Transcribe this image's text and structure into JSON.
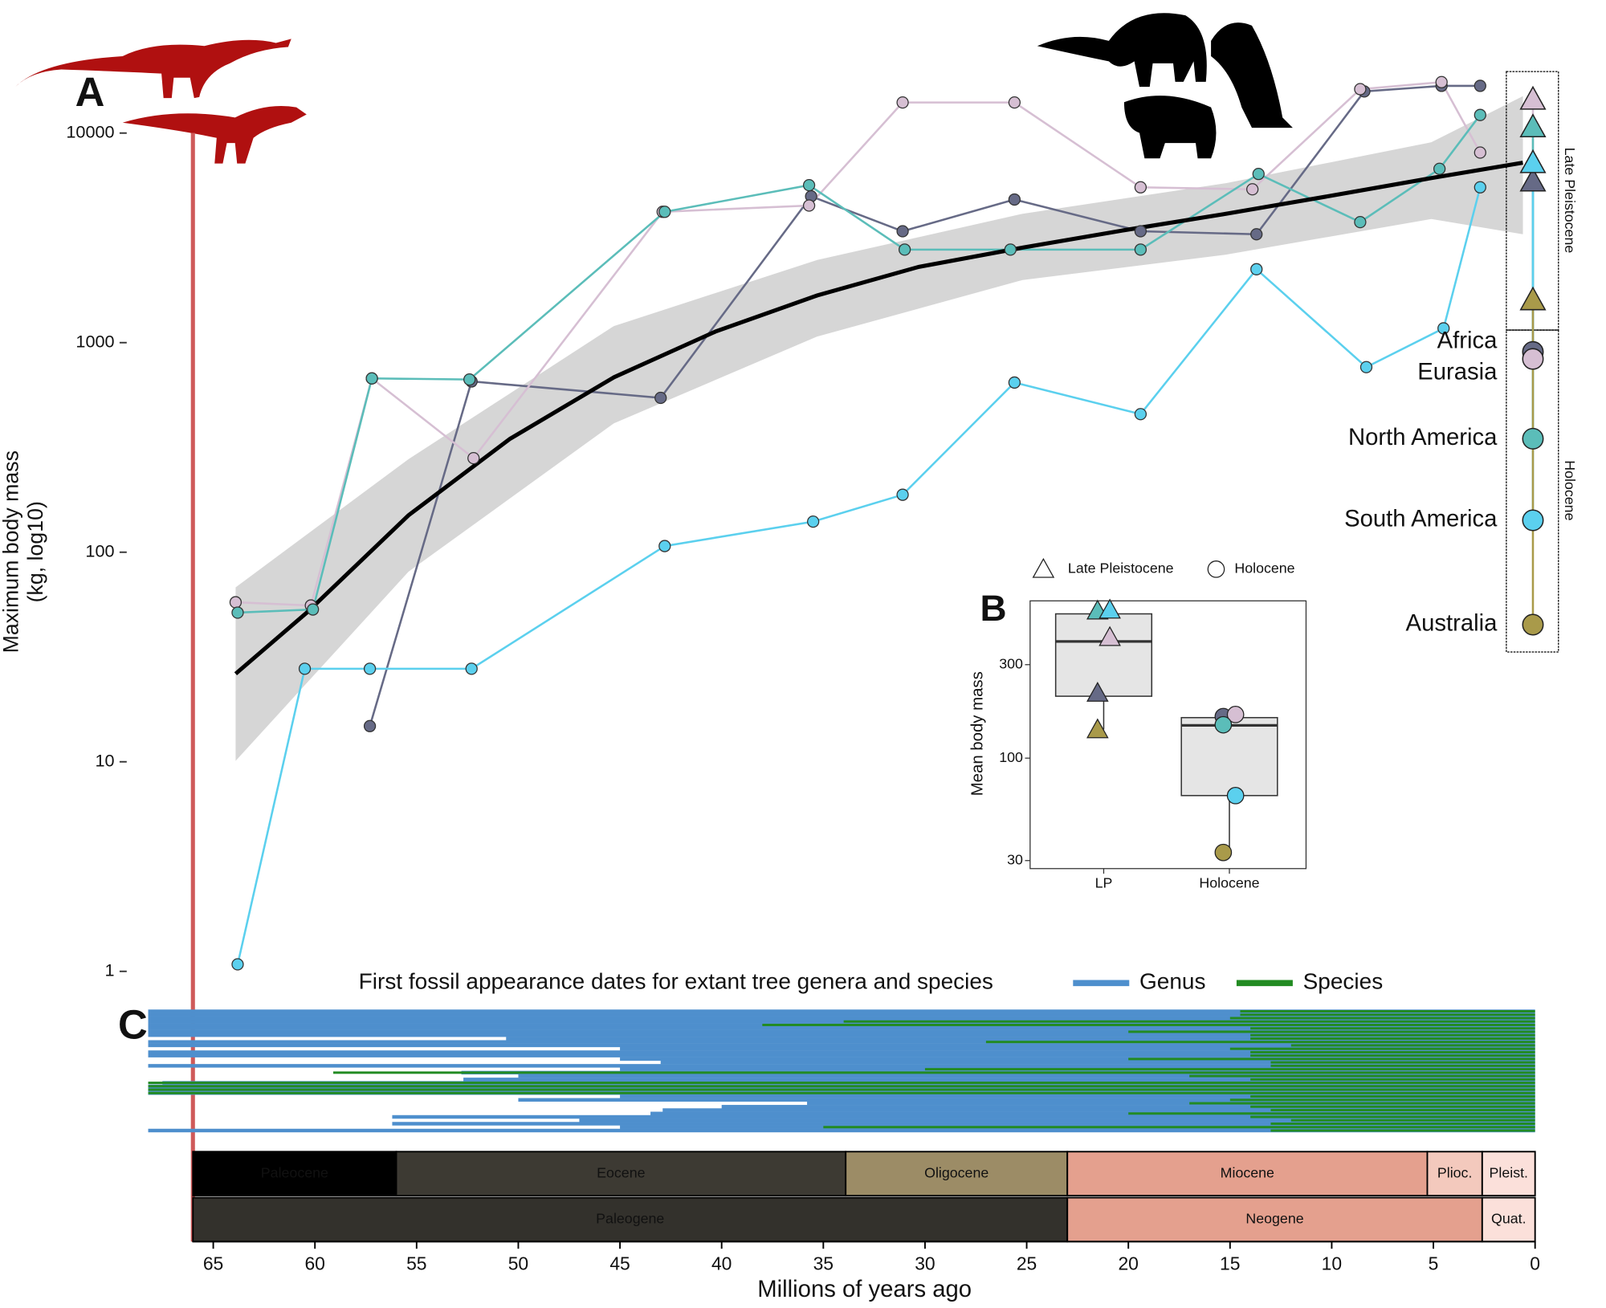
{
  "chart_data": [
    {
      "type": "line",
      "title": "A",
      "ylabel": [
        "Maximum body mass",
        "(kg, log10)"
      ],
      "xlim": [
        68.2,
        -1.2
      ],
      "ylim": [
        0.76,
        22000
      ],
      "log_y": true,
      "yticks": [
        1,
        10,
        100,
        1000,
        10000
      ],
      "reference_line": 66,
      "period_labels": [
        "Late Pleistocene",
        "Holocene"
      ],
      "trend": {
        "color": "#000000",
        "x": [
          63.9,
          60.4,
          55.4,
          50.4,
          45.3,
          40.3,
          35.3,
          30.3,
          25.2,
          20.2,
          15.2,
          10.2,
          5.1,
          0.6
        ],
        "values": [
          26.3,
          51.5,
          150,
          348,
          683,
          1130,
          1680,
          2300,
          2840,
          3440,
          4120,
          4990,
          6100,
          7220
        ]
      },
      "band": {
        "color": "#d6d6d6",
        "x": [
          63.9,
          55.4,
          45.3,
          35.3,
          25.2,
          15.2,
          5.1,
          0.6
        ],
        "upper": [
          68,
          278,
          1200,
          2480,
          4120,
          5770,
          9040,
          15000
        ],
        "lower": [
          10.1,
          80.7,
          412,
          1070,
          1990,
          2630,
          3890,
          3290
        ]
      },
      "series": [
        {
          "name": "Africa",
          "color": "#666a86",
          "x": [
            57.3,
            52.3,
            43.0,
            35.6,
            31.1,
            25.6,
            19.4,
            13.7,
            8.4,
            4.6,
            2.7
          ],
          "values": [
            14.8,
            653,
            545,
            4990,
            3400,
            4820,
            3400,
            3290,
            15800,
            16800,
            16800
          ],
          "late_pleistocene": 5900,
          "holocene": 903
        },
        {
          "name": "Eurasia",
          "color": "#d6bfd3",
          "x": [
            63.9,
            60.2,
            57.2,
            52.2,
            42.9,
            35.7,
            31.1,
            25.6,
            19.4,
            13.9,
            8.6,
            4.6,
            2.7
          ],
          "values": [
            57.7,
            55.7,
            675,
            281,
            4210,
            4510,
            14000,
            14000,
            5510,
            5390,
            16200,
            17500,
            8070
          ],
          "late_pleistocene": 14500,
          "holocene": 836
        },
        {
          "name": "North America",
          "color": "#5bbdb9",
          "x": [
            63.8,
            60.1,
            57.2,
            52.4,
            42.8,
            35.7,
            31.0,
            25.8,
            19.4,
            13.6,
            8.6,
            4.7,
            2.7
          ],
          "values": [
            51.5,
            53.3,
            675,
            667,
            4210,
            5640,
            2780,
            2780,
            2780,
            6380,
            3760,
            6750,
            12200
          ],
          "late_pleistocene": 10700,
          "holocene": 348
        },
        {
          "name": "South America",
          "color": "#5bd0ee",
          "x": [
            63.8,
            60.5,
            57.3,
            52.3,
            42.8,
            35.5,
            31.1,
            25.6,
            19.4,
            13.7,
            8.3,
            4.5,
            2.7
          ],
          "values": [
            1.08,
            27.8,
            27.8,
            27.8,
            107,
            140,
            188,
            645,
            456,
            2240,
            764,
            1170,
            5510
          ],
          "late_pleistocene": 7220,
          "holocene": 142
        },
        {
          "name": "Australia",
          "color": "#a99a4a",
          "x": [],
          "values": [],
          "late_pleistocene": 1600,
          "holocene": 45.1
        }
      ]
    },
    {
      "type": "box",
      "title": "B",
      "ylabel": "Mean body mass",
      "categories": [
        "LP",
        "Holocene"
      ],
      "ylim": [
        27.3,
        635
      ],
      "log_y": true,
      "yticks": [
        30,
        100,
        300
      ],
      "legend": [
        "Late Pleistocene",
        "Holocene"
      ],
      "boxes": [
        {
          "q1": 207,
          "median": 394,
          "q3": 545,
          "whisker_low": 140
        },
        {
          "q1": 64.4,
          "median": 147,
          "q3": 161,
          "whisker_low": 33
        }
      ],
      "points": [
        {
          "color": "#666a86",
          "values": [
            215,
            163
          ]
        },
        {
          "color": "#d6bfd3",
          "values": [
            414,
            167
          ]
        },
        {
          "color": "#5bbdb9",
          "values": [
            565,
            148
          ]
        },
        {
          "color": "#5bd0ee",
          "values": [
            571,
            64.4
          ]
        },
        {
          "color": "#a99a4a",
          "values": [
            140,
            33
          ]
        }
      ]
    },
    {
      "type": "bar",
      "title": "C",
      "subtitle": "First fossil appearance dates for extant tree genera and species",
      "xlabel": "Millions of years ago",
      "xlim": [
        68.2,
        -1.2
      ],
      "xticks": [
        65,
        60,
        55,
        50,
        45,
        40,
        35,
        30,
        25,
        20,
        15,
        10,
        5,
        0
      ],
      "series": [
        {
          "name": "Genus",
          "color": "#4e8fcd",
          "values": [
            68.2,
            68.2,
            68.2,
            68.2,
            68.2,
            68.2,
            68.2,
            68.2,
            50.6,
            68.2,
            68.2,
            45,
            68.2,
            68.2,
            45,
            43,
            68.2,
            45,
            52.8,
            50,
            52.7,
            67.5,
            68.2,
            68.2,
            68.2,
            45,
            50,
            35.8,
            40,
            42.9,
            43.5,
            56.2,
            47,
            56.2,
            45,
            68.2
          ]
        },
        {
          "name": "Species",
          "color": "#228b22",
          "values": [
            14.5,
            14.5,
            15,
            34,
            38,
            14,
            20,
            14,
            14,
            27,
            12,
            15,
            14,
            14,
            20,
            13,
            13,
            30,
            59.1,
            17,
            14,
            68.2,
            68.2,
            68.2,
            68.2,
            14,
            15,
            17,
            14,
            13,
            20,
            14,
            12,
            13,
            35,
            13
          ]
        }
      ],
      "epochs": [
        {
          "label": "Paleocene",
          "start": 66,
          "end": 56,
          "color": "#000000",
          "text_color": "#ffffff"
        },
        {
          "label": "Eocene",
          "start": 56,
          "end": 33.9,
          "color": "#3d3a33",
          "text_color": "#cccccc"
        },
        {
          "label": "Oligocene",
          "start": 33.9,
          "end": 23,
          "color": "#9c8c66",
          "text_color": "#6b6350"
        },
        {
          "label": "Miocene",
          "start": 23,
          "end": 5.3,
          "color": "#e4a08e",
          "text_color": "#333333"
        },
        {
          "label": "Plioc.",
          "start": 5.3,
          "end": 2.6,
          "color": "#f3c9bd",
          "text_color": "#333333"
        },
        {
          "label": "Pleist.",
          "start": 2.6,
          "end": 0,
          "color": "#fbe0da",
          "text_color": "#333333"
        }
      ],
      "periods": [
        {
          "label": "Paleogene",
          "start": 66,
          "end": 23,
          "color": "#33312c",
          "text_color": "#dddddd"
        },
        {
          "label": "Neogene",
          "start": 23,
          "end": 2.6,
          "color": "#e4a08e",
          "text_color": "#333333"
        },
        {
          "label": "Quat.",
          "start": 2.6,
          "end": 0,
          "color": "#fbe0da",
          "text_color": "#333333"
        }
      ]
    }
  ]
}
